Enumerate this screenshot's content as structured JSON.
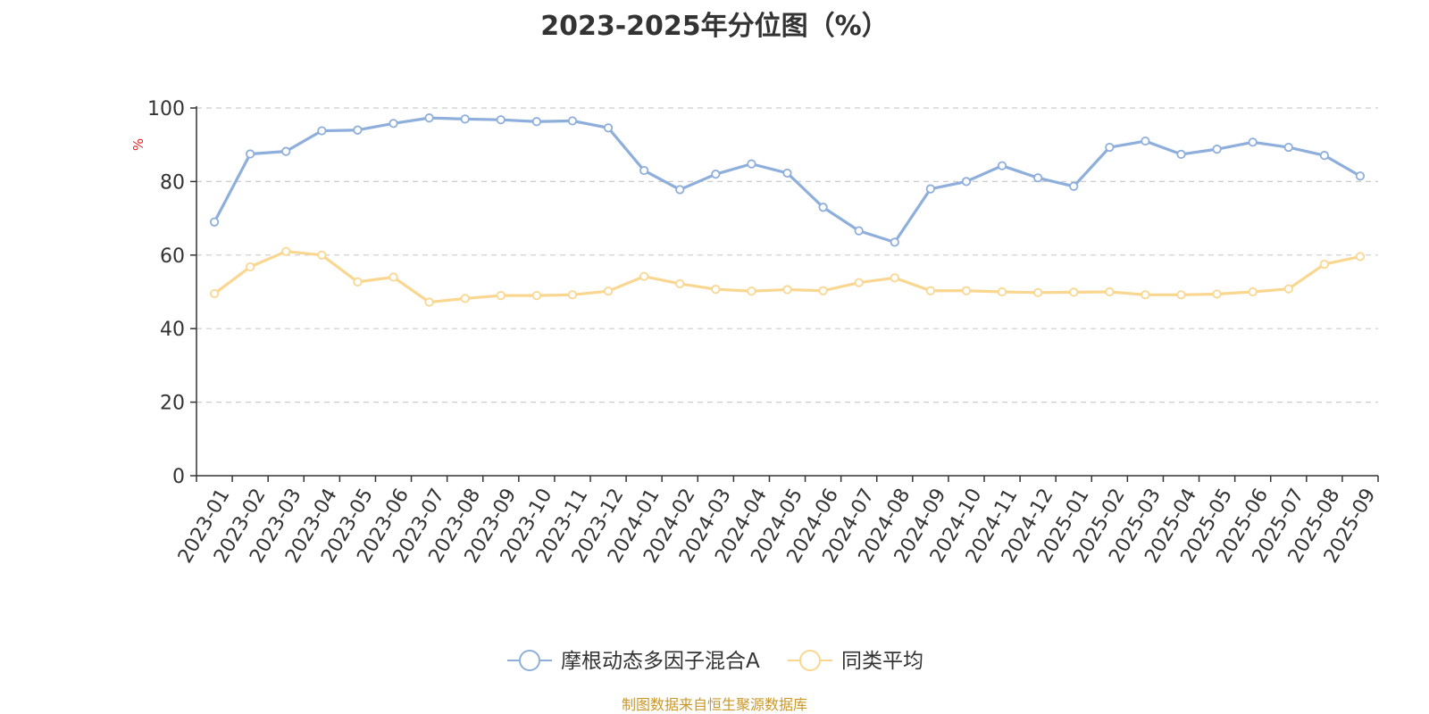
{
  "chart_data": {
    "type": "line",
    "title": "2023-2025年分位图（%）",
    "ylabel": "%",
    "ylim": [
      0,
      100
    ],
    "yticks": [
      0,
      20,
      40,
      60,
      80,
      100
    ],
    "grid": true,
    "legend_position": "bottom-center",
    "categories": [
      "2023-01",
      "2023-02",
      "2023-03",
      "2023-04",
      "2023-05",
      "2023-06",
      "2023-07",
      "2023-08",
      "2023-09",
      "2023-10",
      "2023-11",
      "2023-12",
      "2024-01",
      "2024-02",
      "2024-03",
      "2024-04",
      "2024-05",
      "2024-06",
      "2024-07",
      "2024-08",
      "2024-09",
      "2024-10",
      "2024-11",
      "2024-12",
      "2025-01",
      "2025-02",
      "2025-03",
      "2025-04",
      "2025-05",
      "2025-06",
      "2025-07",
      "2025-08",
      "2025-09"
    ],
    "series": [
      {
        "name": "摩根动态多因子混合A",
        "color": "#8eaedb",
        "values": [
          69,
          87.5,
          88.2,
          93.8,
          94,
          95.8,
          97.3,
          97,
          96.8,
          96.3,
          96.5,
          94.6,
          83,
          77.8,
          82,
          84.8,
          82.3,
          73,
          66.6,
          63.5,
          78,
          80,
          84.3,
          81,
          78.7,
          89.3,
          91,
          87.4,
          88.8,
          90.7,
          89.3,
          87.1,
          81.5
        ]
      },
      {
        "name": "同类平均",
        "color": "#fad791",
        "values": [
          49.5,
          56.8,
          61,
          60,
          52.7,
          54,
          47.2,
          48.2,
          49,
          49,
          49.2,
          50.2,
          54.2,
          52.2,
          50.7,
          50.2,
          50.6,
          50.3,
          52.5,
          53.8,
          50.3,
          50.3,
          50,
          49.8,
          49.9,
          50,
          49.2,
          49.2,
          49.4,
          50,
          50.8,
          57.5,
          59.6
        ]
      }
    ]
  },
  "source_note": "制图数据来自恒生聚源数据库"
}
